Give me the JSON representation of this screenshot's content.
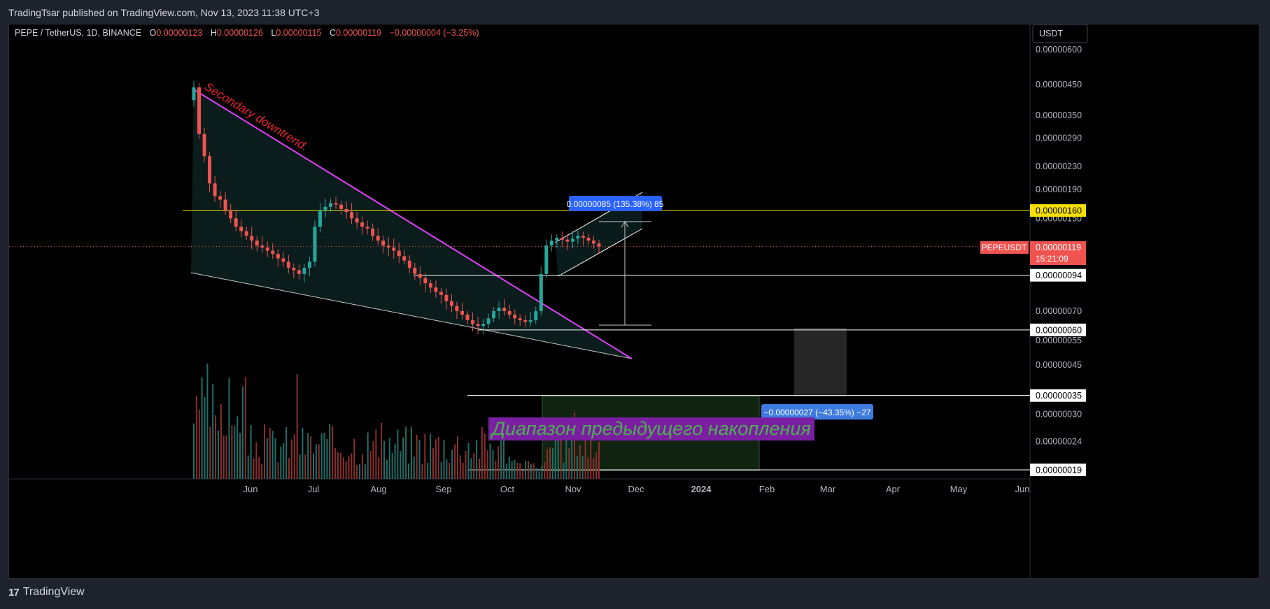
{
  "caption": "TradingTsar published on TradingView.com, Nov 13, 2023 11:38 UTC+3",
  "footer": {
    "brand": "TradingView",
    "logo_text": "17"
  },
  "legend": {
    "symbol": "PEPE / TetherUS, 1D, BINANCE",
    "o_label": "O",
    "o_value": "0.00000123",
    "h_label": "H",
    "h_value": "0.00000126",
    "l_label": "L",
    "l_value": "0.00000115",
    "c_label": "C",
    "c_value": "0.00000119",
    "change": "−0.00000004 (−3.25%)"
  },
  "currency_button": "USDT",
  "colors": {
    "up": "#26a69a",
    "down": "#ef5350",
    "fib_yellow": "#f5e000",
    "trendline": "#e040fb",
    "level_white": "#ffffff",
    "measure_blue": "#2962ff",
    "text_red_label": "#ef2030",
    "accumulation_text": "#4caf50",
    "accumulation_bg": "#7b1fa2"
  },
  "chart_data": {
    "type": "candlestick",
    "symbol": "PEPEUSDT",
    "interval": "1D",
    "y_scale": "log",
    "x_ticks": [
      "Jun",
      "Jul",
      "Aug",
      "Sep",
      "Oct",
      "Nov",
      "Dec",
      "2024",
      "Feb",
      "Mar",
      "Apr",
      "May",
      "Jun"
    ],
    "y_ticks": [
      "0.00000600",
      "0.00000450",
      "0.00000350",
      "0.00000290",
      "0.00000230",
      "0.00000190",
      "0.00000150",
      "0.00000070",
      "0.00000055",
      "0.00000045",
      "0.00000030",
      "0.00000024"
    ],
    "y_tick_values": [
      600,
      450,
      350,
      290,
      230,
      190,
      150,
      70,
      55,
      45,
      30,
      24
    ],
    "last_price": {
      "symbol_badge": "PEPEUSDT",
      "value": "0.00000119",
      "countdown": "15:21:09",
      "level": 119
    },
    "horizontal_levels": [
      {
        "label": "0.00000160",
        "value": 160,
        "style": "yellow"
      },
      {
        "label": "0.00000094",
        "value": 94,
        "style": "white"
      },
      {
        "label": "0.00000060",
        "value": 60,
        "style": "white"
      },
      {
        "label": "0.00000035",
        "value": 35,
        "style": "white"
      },
      {
        "label": "0.00000019",
        "value": 19,
        "style": "white"
      }
    ],
    "annotations": {
      "downtrend_label": "Secondary downtrend.",
      "accumulation_label": "Диапазон предыдущего накопления",
      "measure_up": "0.00000085 (135.38%) 85",
      "measure_down": "−0.00000027 (−43.35%) −27"
    },
    "candles_close_approx": [
      440,
      300,
      250,
      200,
      180,
      175,
      160,
      150,
      140,
      135,
      130,
      125,
      120,
      118,
      115,
      112,
      108,
      105,
      100,
      98,
      95,
      100,
      105,
      140,
      160,
      165,
      170,
      168,
      162,
      158,
      150,
      145,
      140,
      138,
      130,
      125,
      120,
      118,
      115,
      110,
      106,
      100,
      95,
      92,
      88,
      85,
      82,
      80,
      76,
      73,
      70,
      68,
      65,
      63,
      62,
      63,
      66,
      70,
      72,
      70,
      68,
      66,
      65,
      64,
      65,
      70,
      95,
      120,
      125,
      128,
      126,
      124,
      127,
      130,
      128,
      125,
      122,
      119
    ]
  }
}
